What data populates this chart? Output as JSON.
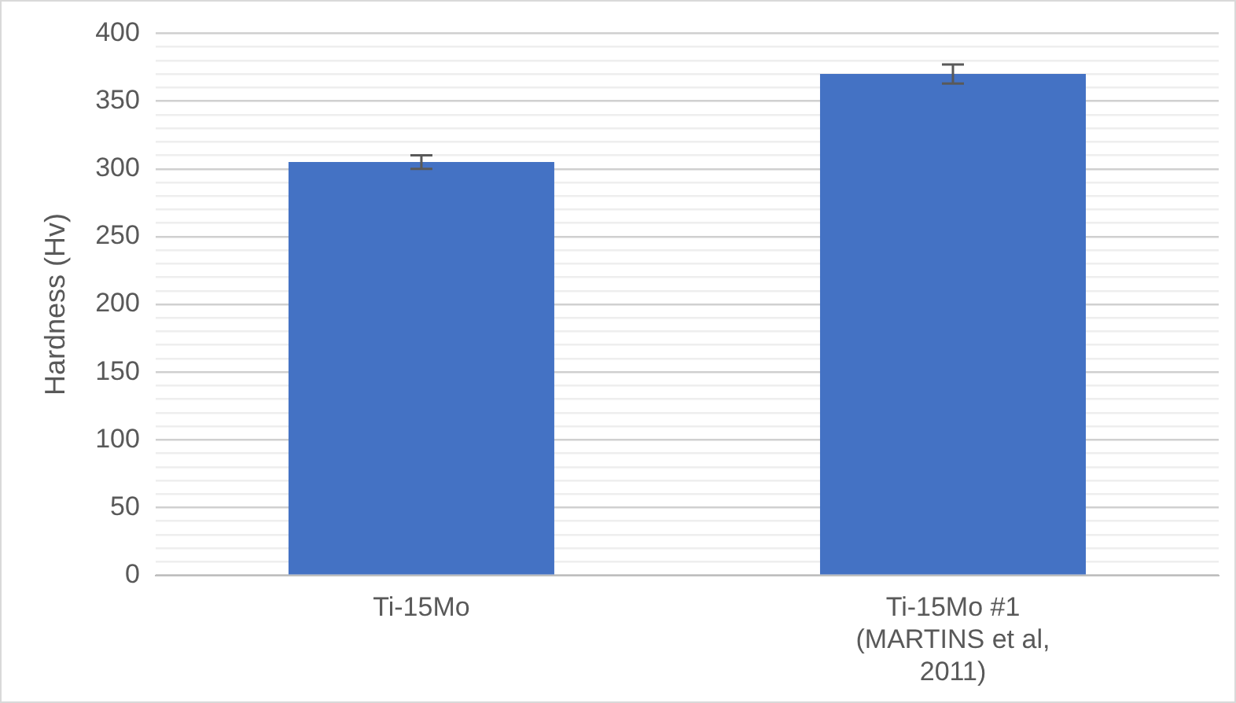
{
  "chart_data": {
    "type": "bar",
    "ylabel": "Hardness (Hv)",
    "categories": [
      "Ti-15Mo",
      "Ti-15Mo #1 (MARTINS et al, 2011)"
    ],
    "values": [
      305,
      370
    ],
    "errors": [
      5,
      7
    ],
    "color": "#4472c4",
    "ylim": [
      0,
      400
    ],
    "yticks": [
      0,
      {
        "value": 10,
        "label": null
      },
      {
        "value": 20,
        "label": null
      },
      {
        "value": 30,
        "label": null
      },
      {
        "value": 40,
        "label": null
      },
      50,
      {
        "value": 60,
        "label": null
      },
      {
        "value": 70,
        "label": null
      },
      {
        "value": 80,
        "label": null
      },
      {
        "value": 90,
        "label": null
      },
      100,
      {
        "value": 110,
        "label": null
      },
      {
        "value": 120,
        "label": null
      },
      {
        "value": 130,
        "label": null
      },
      {
        "value": 140,
        "label": null
      },
      150,
      {
        "value": 160,
        "label": null
      },
      {
        "value": 170,
        "label": null
      },
      {
        "value": 180,
        "label": null
      },
      {
        "value": 190,
        "label": null
      },
      200,
      {
        "value": 210,
        "label": null
      },
      {
        "value": 220,
        "label": null
      },
      {
        "value": 230,
        "label": null
      },
      {
        "value": 240,
        "label": null
      },
      250,
      {
        "value": 260,
        "label": null
      },
      {
        "value": 270,
        "label": null
      },
      {
        "value": 280,
        "label": null
      },
      {
        "value": 290,
        "label": null
      },
      300,
      {
        "value": 310,
        "label": null
      },
      {
        "value": 320,
        "label": null
      },
      {
        "value": 330,
        "label": null
      },
      {
        "value": 340,
        "label": null
      },
      350,
      {
        "value": 360,
        "label": null
      },
      {
        "value": 370,
        "label": null
      },
      {
        "value": 380,
        "label": null
      },
      {
        "value": 390,
        "label": null
      },
      400
    ],
    "grid": true,
    "legend": false
  }
}
